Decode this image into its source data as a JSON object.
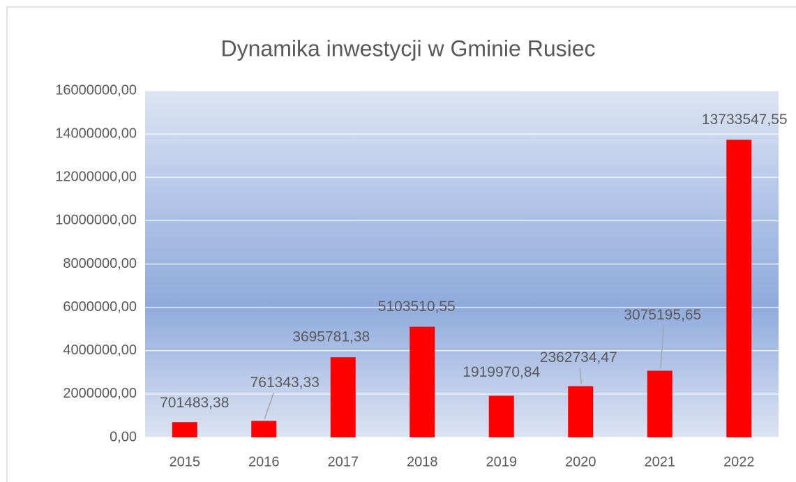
{
  "chart_data": {
    "type": "bar",
    "title": "Dynamika inwestycji w Gminie Rusiec",
    "categories": [
      "2015",
      "2016",
      "2017",
      "2018",
      "2019",
      "2020",
      "2021",
      "2022"
    ],
    "values": [
      701483.38,
      761343.33,
      3695781.38,
      5103510.55,
      1919970.84,
      2362734.47,
      3075195.65,
      13733547.55
    ],
    "value_labels": [
      "701483,38",
      "761343,33",
      "3695781,38",
      "5103510,55",
      "1919970,84",
      "2362734,47",
      "3075195,65",
      "13733547,55"
    ],
    "color": "#ff0000",
    "ylim": [
      0,
      16000000
    ],
    "yticks": [
      {
        "value": 0,
        "label": "0,00"
      },
      {
        "value": 2000000,
        "label": "2000000,00"
      },
      {
        "value": 4000000,
        "label": "4000000,00"
      },
      {
        "value": 6000000,
        "label": "6000000,00"
      },
      {
        "value": 8000000,
        "label": "8000000,00"
      },
      {
        "value": 10000000,
        "label": "10000000,00"
      },
      {
        "value": 12000000,
        "label": "12000000,00"
      },
      {
        "value": 14000000,
        "label": "14000000,00"
      },
      {
        "value": 16000000,
        "label": "16000000,00"
      }
    ],
    "grid": true
  }
}
